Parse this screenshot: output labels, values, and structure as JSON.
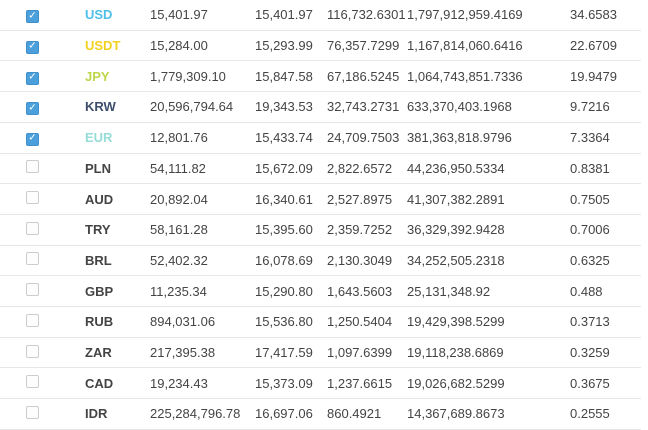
{
  "palette": {
    "checkbox_checked_fill": "#4ba0dc",
    "checkbox_checked_border": "#3d90cc",
    "checkbox_unchecked_border": "#cccccc",
    "row_border": "#e7e7e7",
    "text": "#444444",
    "background": "#ffffff"
  },
  "table": {
    "rows": [
      {
        "checked": true,
        "currency": "USD",
        "currency_color": "#4fc0e8",
        "values": [
          "15,401.97",
          "15,401.97",
          "116,732.6301",
          "1,797,912,959.4169",
          "34.6583"
        ]
      },
      {
        "checked": true,
        "currency": "USDT",
        "currency_color": "#f2d21f",
        "values": [
          "15,284.00",
          "15,293.99",
          "76,357.7299",
          "1,167,814,060.6416",
          "22.6709"
        ]
      },
      {
        "checked": true,
        "currency": "JPY",
        "currency_color": "#bdd64a",
        "values": [
          "1,779,309.10",
          "15,847.58",
          "67,186.5245",
          "1,064,743,851.7336",
          "19.9479"
        ]
      },
      {
        "checked": true,
        "currency": "KRW",
        "currency_color": "#3d4d6b",
        "values": [
          "20,596,794.64",
          "19,343.53",
          "32,743.2731",
          "633,370,403.1968",
          "9.7216"
        ]
      },
      {
        "checked": true,
        "currency": "EUR",
        "currency_color": "#96dcd7",
        "values": [
          "12,801.76",
          "15,433.74",
          "24,709.7503",
          "381,363,818.9796",
          "7.3364"
        ]
      },
      {
        "checked": false,
        "currency": "PLN",
        "currency_color": "#444444",
        "values": [
          "54,111.82",
          "15,672.09",
          "2,822.6572",
          "44,236,950.5334",
          "0.8381"
        ]
      },
      {
        "checked": false,
        "currency": "AUD",
        "currency_color": "#444444",
        "values": [
          "20,892.04",
          "16,340.61",
          "2,527.8975",
          "41,307,382.2891",
          "0.7505"
        ]
      },
      {
        "checked": false,
        "currency": "TRY",
        "currency_color": "#444444",
        "values": [
          "58,161.28",
          "15,395.60",
          "2,359.7252",
          "36,329,392.9428",
          "0.7006"
        ]
      },
      {
        "checked": false,
        "currency": "BRL",
        "currency_color": "#444444",
        "values": [
          "52,402.32",
          "16,078.69",
          "2,130.3049",
          "34,252,505.2318",
          "0.6325"
        ]
      },
      {
        "checked": false,
        "currency": "GBP",
        "currency_color": "#444444",
        "values": [
          "11,235.34",
          "15,290.80",
          "1,643.5603",
          "25,131,348.92",
          "0.488"
        ]
      },
      {
        "checked": false,
        "currency": "RUB",
        "currency_color": "#444444",
        "values": [
          "894,031.06",
          "15,536.80",
          "1,250.5404",
          "19,429,398.5299",
          "0.3713"
        ]
      },
      {
        "checked": false,
        "currency": "ZAR",
        "currency_color": "#444444",
        "values": [
          "217,395.38",
          "17,417.59",
          "1,097.6399",
          "19,118,238.6869",
          "0.3259"
        ]
      },
      {
        "checked": false,
        "currency": "CAD",
        "currency_color": "#444444",
        "values": [
          "19,234.43",
          "15,373.09",
          "1,237.6615",
          "19,026,682.5299",
          "0.3675"
        ]
      },
      {
        "checked": false,
        "currency": "IDR",
        "currency_color": "#444444",
        "values": [
          "225,284,796.78",
          "16,697.06",
          "860.4921",
          "14,367,689.8673",
          "0.2555"
        ]
      }
    ],
    "checkmark_glyph": "✓"
  }
}
